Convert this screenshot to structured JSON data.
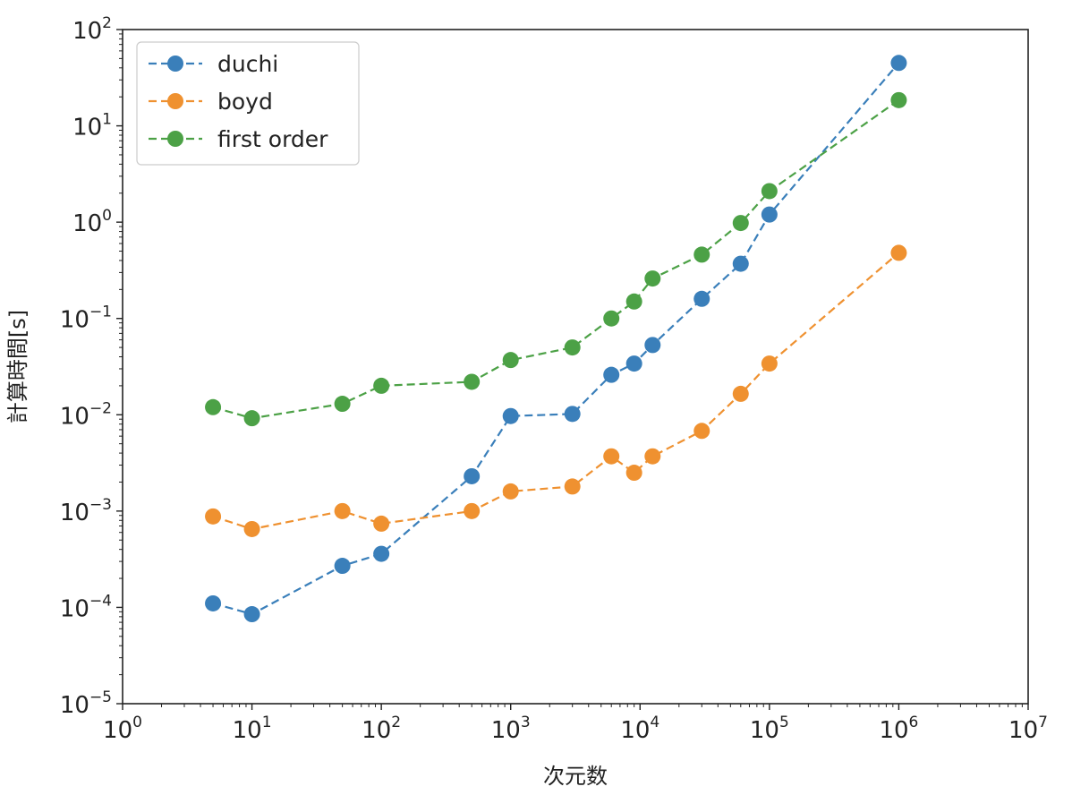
{
  "chart_data": {
    "type": "line",
    "xlabel": "次元数",
    "ylabel": "計算時間[s]",
    "xscale": "log",
    "yscale": "log",
    "xlim": [
      1,
      10000000
    ],
    "ylim": [
      1e-05,
      100
    ],
    "x_ticks": [
      {
        "base": "10",
        "exp": "0"
      },
      {
        "base": "10",
        "exp": "1"
      },
      {
        "base": "10",
        "exp": "2"
      },
      {
        "base": "10",
        "exp": "3"
      },
      {
        "base": "10",
        "exp": "4"
      },
      {
        "base": "10",
        "exp": "5"
      },
      {
        "base": "10",
        "exp": "6"
      },
      {
        "base": "10",
        "exp": "7"
      }
    ],
    "y_ticks": [
      {
        "base": "10",
        "exp": "−5"
      },
      {
        "base": "10",
        "exp": "−4"
      },
      {
        "base": "10",
        "exp": "−3"
      },
      {
        "base": "10",
        "exp": "−2"
      },
      {
        "base": "10",
        "exp": "−1"
      },
      {
        "base": "10",
        "exp": "0"
      },
      {
        "base": "10",
        "exp": "1"
      },
      {
        "base": "10",
        "exp": "2"
      }
    ],
    "grid": false,
    "legend_position": "top-left",
    "series": [
      {
        "name": "duchi",
        "color": "#3a7fba",
        "style": "dashed",
        "marker": "circle",
        "points": [
          [
            5,
            0.00011
          ],
          [
            10,
            8.5e-05
          ],
          [
            50,
            0.00027
          ],
          [
            100,
            0.00036
          ],
          [
            500,
            0.0023
          ],
          [
            1000,
            0.0097
          ],
          [
            3000,
            0.0102
          ],
          [
            6000,
            0.026
          ],
          [
            9000,
            0.034
          ],
          [
            12500,
            0.053
          ],
          [
            30000,
            0.16
          ],
          [
            60000,
            0.37
          ],
          [
            100000,
            1.2
          ],
          [
            1000000,
            45
          ]
        ]
      },
      {
        "name": "boyd",
        "color": "#ef9130",
        "style": "dashed",
        "marker": "circle",
        "points": [
          [
            5,
            0.00088
          ],
          [
            10,
            0.00065
          ],
          [
            50,
            0.001
          ],
          [
            100,
            0.00074
          ],
          [
            500,
            0.001
          ],
          [
            1000,
            0.0016
          ],
          [
            3000,
            0.0018
          ],
          [
            6000,
            0.0037
          ],
          [
            9000,
            0.0025
          ],
          [
            12500,
            0.0037
          ],
          [
            30000,
            0.0068
          ],
          [
            60000,
            0.0165
          ],
          [
            100000,
            0.034
          ],
          [
            1000000,
            0.48
          ]
        ]
      },
      {
        "name": "first order",
        "color": "#4ca146",
        "style": "dashed",
        "marker": "circle",
        "points": [
          [
            5,
            0.012
          ],
          [
            10,
            0.0092
          ],
          [
            50,
            0.013
          ],
          [
            100,
            0.02
          ],
          [
            500,
            0.022
          ],
          [
            1000,
            0.037
          ],
          [
            3000,
            0.05
          ],
          [
            6000,
            0.1
          ],
          [
            9000,
            0.15
          ],
          [
            12500,
            0.26
          ],
          [
            30000,
            0.46
          ],
          [
            60000,
            0.98
          ],
          [
            100000,
            2.1
          ],
          [
            1000000,
            18.5
          ]
        ]
      }
    ]
  }
}
